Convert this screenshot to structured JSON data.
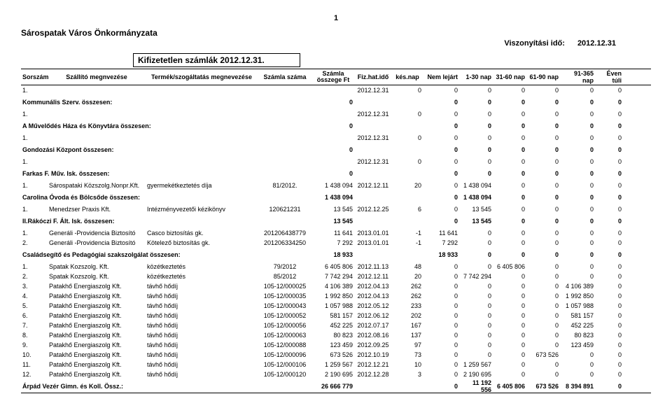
{
  "page_number": "1",
  "org": "Sárospatak Város Önkormányzata",
  "ref_label": "Viszonyítási idő:",
  "ref_date": "2012.12.31",
  "title": "Kifizetetlen számlák 2012.12.31.",
  "headers": {
    "sor": "Sorszám",
    "szall": "Szállító megnvezése",
    "term": "Termék/szogáltatás megnevezése",
    "num": "Számla száma",
    "amt1": "Számla",
    "amt2": "összege Ft",
    "fiz": "Fiz.hat.idő",
    "kes": "kés.nap",
    "lej": "Nem lejárt",
    "a": "1-30 nap",
    "b": "31-60 nap",
    "c": "61-90 nap",
    "d": "91-365 nap",
    "e": "Éven túli"
  },
  "blocks": [
    {
      "rows": [
        {
          "sor": "1.",
          "szall": "",
          "term": "",
          "num": "",
          "amt": "",
          "fiz": "2012.12.31",
          "kes": "0",
          "lej": "0",
          "a": "0",
          "b": "0",
          "c": "0",
          "d": "0",
          "e": "0"
        }
      ],
      "subtotal": {
        "label": "Kommunális Szerv. összesen:",
        "amt": "0",
        "lej": "0",
        "a": "0",
        "b": "0",
        "c": "0",
        "d": "0",
        "e": "0"
      }
    },
    {
      "rows": [
        {
          "sor": "1.",
          "szall": "",
          "term": "",
          "num": "",
          "amt": "",
          "fiz": "2012.12.31",
          "kes": "0",
          "lej": "0",
          "a": "0",
          "b": "0",
          "c": "0",
          "d": "0",
          "e": "0"
        }
      ],
      "subtotal": {
        "label": "A Művelődés Háza és Könyvtára összesen:",
        "amt": "0",
        "lej": "0",
        "a": "0",
        "b": "0",
        "c": "0",
        "d": "0",
        "e": "0"
      }
    },
    {
      "rows": [
        {
          "sor": "1.",
          "szall": "",
          "term": "",
          "num": "",
          "amt": "",
          "fiz": "2012.12.31",
          "kes": "0",
          "lej": "0",
          "a": "0",
          "b": "0",
          "c": "0",
          "d": "0",
          "e": "0"
        }
      ],
      "subtotal": {
        "label": "Gondozási Központ összesen:",
        "amt": "0",
        "lej": "0",
        "a": "0",
        "b": "0",
        "c": "0",
        "d": "0",
        "e": "0"
      }
    },
    {
      "rows": [
        {
          "sor": "1.",
          "szall": "",
          "term": "",
          "num": "",
          "amt": "",
          "fiz": "2012.12.31",
          "kes": "0",
          "lej": "0",
          "a": "0",
          "b": "0",
          "c": "0",
          "d": "0",
          "e": "0"
        }
      ],
      "subtotal": {
        "label": "Farkas F. Műv. Isk. összesen:",
        "amt": "0",
        "lej": "0",
        "a": "0",
        "b": "0",
        "c": "0",
        "d": "0",
        "e": "0"
      }
    },
    {
      "rows": [
        {
          "sor": "1.",
          "szall": "Sárospataki Közszolg.Nonpr.Kft.",
          "term": "gyermekétkeztetés díja",
          "num": "81/2012.",
          "amt": "1 438 094",
          "fiz": "2012.12.11",
          "kes": "20",
          "lej": "0",
          "a": "1 438 094",
          "b": "0",
          "c": "0",
          "d": "0",
          "e": "0"
        }
      ],
      "subtotal": {
        "label": "Carolina Óvoda és Bölcsőde összesen:",
        "amt": "1 438 094",
        "lej": "0",
        "a": "1 438 094",
        "b": "0",
        "c": "0",
        "d": "0",
        "e": "0"
      }
    },
    {
      "rows": [
        {
          "sor": "1.",
          "szall": "Menedzser Praxis Kft.",
          "term": "Intézményvezetői kézikönyv",
          "num": "120621231",
          "amt": "13 545",
          "fiz": "2012.12.25",
          "kes": "6",
          "lej": "0",
          "a": "13 545",
          "b": "0",
          "c": "0",
          "d": "0",
          "e": "0"
        }
      ],
      "subtotal": {
        "label": "II.Rákóczi F. Ált. Isk. összesen:",
        "amt": "13 545",
        "lej": "0",
        "a": "13 545",
        "b": "0",
        "c": "0",
        "d": "0",
        "e": "0"
      }
    },
    {
      "rows": [
        {
          "sor": "1.",
          "szall": "Generáli -Providencia Biztosító",
          "term": "Casco biztosítás gk.",
          "num": "201206438779",
          "amt": "11 641",
          "fiz": "2013.01.01",
          "kes": "-1",
          "lej": "11 641",
          "a": "0",
          "b": "0",
          "c": "0",
          "d": "0",
          "e": "0"
        },
        {
          "sor": "2.",
          "szall": "Generáli -Providencia Biztosító",
          "term": "Kötelező biztosítás gk.",
          "num": "201206334250",
          "amt": "7 292",
          "fiz": "2013.01.01",
          "kes": "-1",
          "lej": "7 292",
          "a": "0",
          "b": "0",
          "c": "0",
          "d": "0",
          "e": "0"
        }
      ],
      "subtotal": {
        "label": "Családsegítő és Pedagógiai szakszolgálat összesen:",
        "amt": "18 933",
        "lej": "18 933",
        "a": "0",
        "b": "0",
        "c": "0",
        "d": "0",
        "e": "0"
      }
    },
    {
      "rows": [
        {
          "sor": "1.",
          "szall": "Spatak Kozszolg. Kft.",
          "term": "közétkeztetés",
          "num": "79/2012",
          "amt": "6 405 806",
          "fiz": "2012.11.13",
          "kes": "48",
          "lej": "0",
          "a": "0",
          "b": "6 405 806",
          "c": "0",
          "d": "0",
          "e": "0"
        },
        {
          "sor": "2.",
          "szall": "Spatak Kozszolg. Kft.",
          "term": "közétkeztetés",
          "num": "85/2012",
          "amt": "7 742 294",
          "fiz": "2012.12.11",
          "kes": "20",
          "lej": "0",
          "a": "7 742 294",
          "b": "0",
          "c": "0",
          "d": "0",
          "e": "0"
        },
        {
          "sor": "3.",
          "szall": "Patakhő Energiaszolg Kft.",
          "term": "távhő hődíj",
          "num": "105-12/000025",
          "amt": "4 106 389",
          "fiz": "2012.04.13",
          "kes": "262",
          "lej": "0",
          "a": "0",
          "b": "0",
          "c": "0",
          "d": "4 106 389",
          "e": "0"
        },
        {
          "sor": "4.",
          "szall": "Patakhő Energiaszolg Kft.",
          "term": "távhő hődíj",
          "num": "105-12/000035",
          "amt": "1 992 850",
          "fiz": "2012.04.13",
          "kes": "262",
          "lej": "0",
          "a": "0",
          "b": "0",
          "c": "0",
          "d": "1 992 850",
          "e": "0"
        },
        {
          "sor": "5.",
          "szall": "Patakhő Energiaszolg Kft.",
          "term": "távhő hődíj",
          "num": "105-12/000043",
          "amt": "1 057 988",
          "fiz": "2012.05.12",
          "kes": "233",
          "lej": "0",
          "a": "0",
          "b": "0",
          "c": "0",
          "d": "1 057 988",
          "e": "0"
        },
        {
          "sor": "6.",
          "szall": "Patakhő Energiaszolg Kft.",
          "term": "távhő hődíj",
          "num": "105-12/000052",
          "amt": "581 157",
          "fiz": "2012.06.12",
          "kes": "202",
          "lej": "0",
          "a": "0",
          "b": "0",
          "c": "0",
          "d": "581 157",
          "e": "0"
        },
        {
          "sor": "7.",
          "szall": "Patakhő Energiaszolg Kft.",
          "term": "távhő hődíj",
          "num": "105-12/000056",
          "amt": "452 225",
          "fiz": "2012.07.17",
          "kes": "167",
          "lej": "0",
          "a": "0",
          "b": "0",
          "c": "0",
          "d": "452 225",
          "e": "0"
        },
        {
          "sor": "8.",
          "szall": "Patakhő Energiaszolg Kft.",
          "term": "távhő hődíj",
          "num": "105-12/000063",
          "amt": "80 823",
          "fiz": "2012.08.16",
          "kes": "137",
          "lej": "0",
          "a": "0",
          "b": "0",
          "c": "0",
          "d": "80 823",
          "e": "0"
        },
        {
          "sor": "9.",
          "szall": "Patakhő Energiaszolg Kft.",
          "term": "távhő hődíj",
          "num": "105-12/000088",
          "amt": "123 459",
          "fiz": "2012.09.25",
          "kes": "97",
          "lej": "0",
          "a": "0",
          "b": "0",
          "c": "0",
          "d": "123 459",
          "e": "0"
        },
        {
          "sor": "10.",
          "szall": "Patakhő Energiaszolg Kft.",
          "term": "távhő hődíj",
          "num": "105-12/000096",
          "amt": "673 526",
          "fiz": "2012.10.19",
          "kes": "73",
          "lej": "0",
          "a": "0",
          "b": "0",
          "c": "673 526",
          "d": "0",
          "e": "0"
        },
        {
          "sor": "11.",
          "szall": "Patakhő Energiaszolg Kft.",
          "term": "távhő hődíj",
          "num": "105-12/000106",
          "amt": "1 259 567",
          "fiz": "2012.12.21",
          "kes": "10",
          "lej": "0",
          "a": "1 259 567",
          "b": "0",
          "c": "0",
          "d": "0",
          "e": "0"
        },
        {
          "sor": "12.",
          "szall": "Patakhő Energiaszolg Kft.",
          "term": "távhő hődíj",
          "num": "105-12/000120",
          "amt": "2 190 695",
          "fiz": "2012.12.28",
          "kes": "3",
          "lej": "0",
          "a": "2 190 695",
          "b": "0",
          "c": "0",
          "d": "0",
          "e": "0"
        }
      ],
      "subtotal": {
        "label": "Árpád Vezér Gimn. és Koll. Össz.:",
        "amt": "26 666 779",
        "lej": "0",
        "a": "11 192 556",
        "b": "6 405 806",
        "c": "673 526",
        "d": "8 394 891",
        "e": "0",
        "bottom_border": true
      }
    }
  ]
}
